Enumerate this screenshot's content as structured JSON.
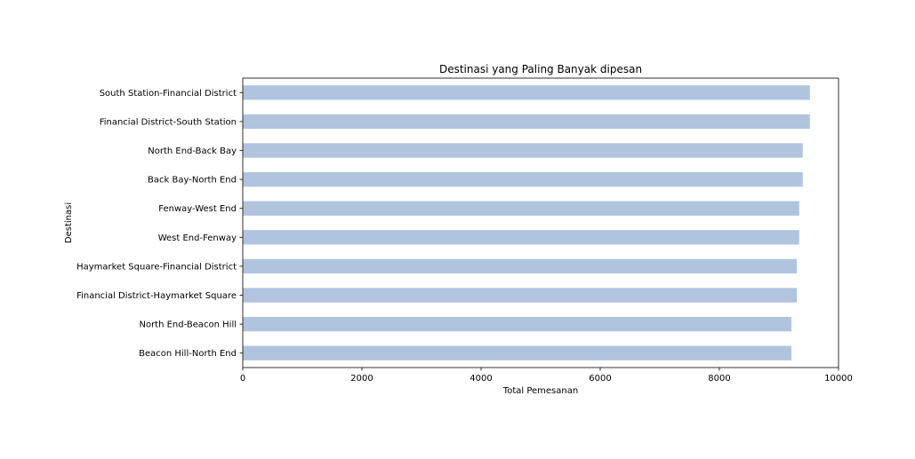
{
  "chart_data": {
    "type": "bar",
    "orientation": "horizontal",
    "title": "Destinasi yang Paling Banyak dipesan",
    "xlabel": "Total Pemesanan",
    "ylabel": "Destinasi",
    "xlim": [
      0,
      10000
    ],
    "x_ticks": [
      "0",
      "2000",
      "4000",
      "6000",
      "8000",
      "10000"
    ],
    "grid": false,
    "legend": "none",
    "bar_color": "#b0c4de",
    "categories": [
      "South Station-Financial District",
      "Financial District-South Station",
      "North End-Back Bay",
      "Back Bay-North End",
      "Fenway-West End",
      "West End-Fenway",
      "Haymarket Square-Financial District",
      "Financial District-Haymarket Square",
      "North End-Beacon Hill",
      "Beacon Hill-North End"
    ],
    "values": [
      9520,
      9520,
      9400,
      9400,
      9340,
      9340,
      9300,
      9300,
      9210,
      9210
    ]
  }
}
